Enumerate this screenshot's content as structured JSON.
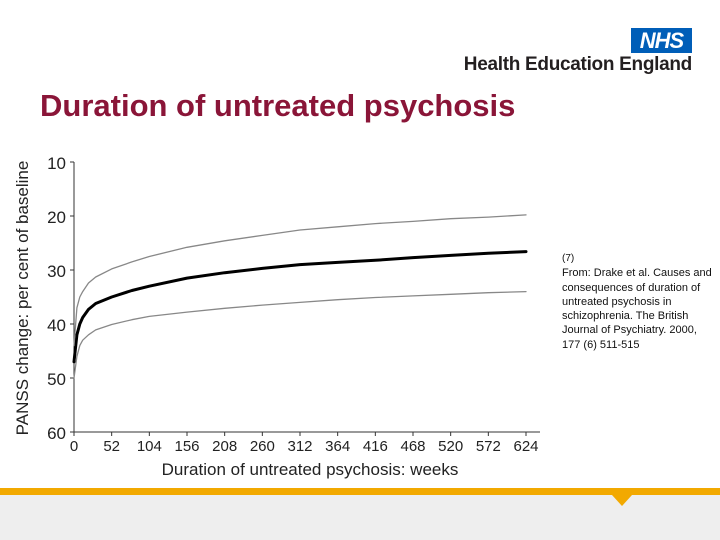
{
  "header": {
    "logo": {
      "text": "NHS",
      "color": "#005eb8"
    },
    "organization": "Health Education England"
  },
  "slide": {
    "title": "Duration of untreated psychosis",
    "title_color": "#8a1538"
  },
  "source": {
    "note_marker": "(7)",
    "text": "From: Drake et al. Causes and consequences of duration of untreated psychosis in schizophrenia. The British Journal of Psychiatry. 2000, 177 (6) 511-515"
  },
  "footer": {
    "accent_color": "#f2a900",
    "band_color": "#eeeeee"
  },
  "chart_data": {
    "type": "line",
    "ylabel": "PANSS change: per cent of baseline",
    "xlabel": "Duration of untreated psychosis: weeks",
    "x_ticks": [
      0,
      52,
      104,
      156,
      208,
      260,
      312,
      364,
      416,
      468,
      520,
      572,
      624
    ],
    "y_ticks": [
      10,
      20,
      30,
      40,
      50,
      60
    ],
    "xlim": [
      0,
      624
    ],
    "ylim": [
      10,
      60
    ],
    "y_inverted": true,
    "grid": false,
    "series": [
      {
        "role": "estimate",
        "color": "#000000",
        "x": [
          0,
          4,
          8,
          12,
          20,
          30,
          52,
          80,
          104,
          156,
          208,
          260,
          312,
          364,
          416,
          468,
          520,
          572,
          624
        ],
        "y": [
          47,
          42,
          40,
          38.8,
          37.3,
          36.2,
          35,
          33.8,
          33,
          31.5,
          30.5,
          29.7,
          29,
          28.6,
          28.2,
          27.7,
          27.3,
          26.9,
          26.6
        ]
      },
      {
        "role": "upper bound",
        "color": "#888888",
        "x": [
          0,
          4,
          8,
          12,
          20,
          30,
          52,
          80,
          104,
          156,
          208,
          260,
          312,
          364,
          416,
          468,
          520,
          572,
          624
        ],
        "y": [
          44,
          37,
          35,
          34,
          32.4,
          31.3,
          29.8,
          28.5,
          27.5,
          25.8,
          24.6,
          23.6,
          22.6,
          22,
          21.4,
          21,
          20.5,
          20.2,
          19.8
        ]
      },
      {
        "role": "lower bound",
        "color": "#888888",
        "x": [
          0,
          4,
          8,
          12,
          20,
          30,
          52,
          80,
          104,
          156,
          208,
          260,
          312,
          364,
          416,
          468,
          520,
          572,
          624
        ],
        "y": [
          50,
          46,
          44,
          43,
          42,
          41.1,
          40.1,
          39.2,
          38.6,
          37.8,
          37.1,
          36.5,
          36,
          35.5,
          35.1,
          34.8,
          34.5,
          34.2,
          34
        ]
      }
    ]
  }
}
